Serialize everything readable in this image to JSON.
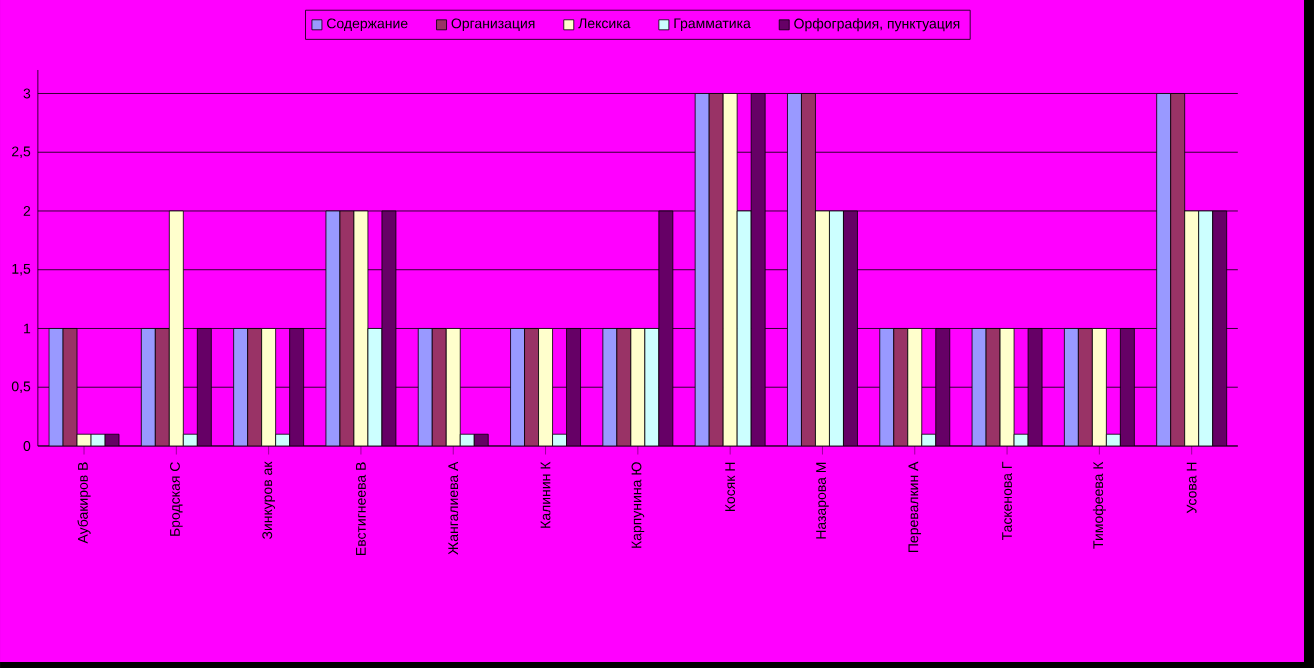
{
  "chart_data": {
    "type": "bar",
    "categories": [
      "Аубакиров В",
      "Бродская С",
      "Зинкуров ак",
      "Евстигнеева В",
      "Жангалиева А",
      "Калинин К",
      "Карпунина Ю",
      "Косяк Н",
      "Назарова М",
      "Перевалкин А",
      "Таскенова Г",
      "Тимофеева К",
      "Усова Н"
    ],
    "series": [
      {
        "name": "Содержание",
        "color": "#9999ff",
        "values": [
          1,
          1,
          1,
          2,
          1,
          1,
          1,
          3,
          3,
          1,
          1,
          1,
          3
        ]
      },
      {
        "name": "Организация",
        "color": "#993366",
        "values": [
          1,
          1,
          1,
          2,
          1,
          1,
          1,
          3,
          3,
          1,
          1,
          1,
          3
        ]
      },
      {
        "name": "Лексика",
        "color": "#ffffcc",
        "values": [
          0.1,
          2,
          1,
          2,
          1,
          1,
          1,
          3,
          2,
          1,
          1,
          1,
          2
        ]
      },
      {
        "name": "Грамматика",
        "color": "#ccffff",
        "values": [
          0.1,
          0.1,
          0.1,
          1,
          0.1,
          0.1,
          1,
          2,
          2,
          0.1,
          0.1,
          0.1,
          2
        ]
      },
      {
        "name": "Орфография, пунктуация",
        "color": "#660066",
        "values": [
          0.1,
          1,
          1,
          2,
          0.1,
          1,
          2,
          3,
          2,
          1,
          1,
          1,
          2
        ]
      }
    ],
    "ylim": [
      0,
      3.2
    ],
    "yticks": [
      0,
      {
        "value": 0.5,
        "label": "0,5"
      },
      1,
      {
        "value": 1.5,
        "label": "1,5"
      },
      2,
      {
        "value": 2.5,
        "label": "2,5"
      },
      3
    ],
    "grid": "y",
    "legend": "top"
  }
}
